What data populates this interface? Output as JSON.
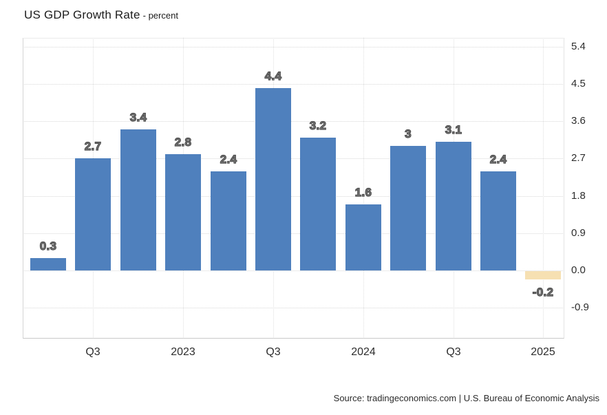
{
  "header": {
    "title": "US GDP Growth Rate",
    "subtitle": "- percent"
  },
  "footer": {
    "source": "Source: tradingeconomics.com | U.S. Bureau of Economic Analysis"
  },
  "chart_data": {
    "type": "bar",
    "title": "US GDP Growth Rate",
    "unit": "percent",
    "values": [
      0.3,
      2.7,
      3.4,
      2.8,
      2.4,
      4.4,
      3.2,
      1.6,
      3,
      3.1,
      2.4,
      -0.2
    ],
    "bar_labels": [
      "0.3",
      "2.7",
      "3.4",
      "2.8",
      "2.4",
      "4.4",
      "3.2",
      "1.6",
      "3",
      "3.1",
      "2.4",
      "-0.2"
    ],
    "bar_colors": [
      "#4f80bd",
      "#4f80bd",
      "#4f80bd",
      "#4f80bd",
      "#4f80bd",
      "#4f80bd",
      "#4f80bd",
      "#4f80bd",
      "#4f80bd",
      "#4f80bd",
      "#4f80bd",
      "#f6e0b2"
    ],
    "x_ticks": [
      {
        "bar_index": 1,
        "label": "Q3"
      },
      {
        "bar_index": 3,
        "label": "2023"
      },
      {
        "bar_index": 5,
        "label": "Q3"
      },
      {
        "bar_index": 7,
        "label": "2024"
      },
      {
        "bar_index": 9,
        "label": "Q3"
      },
      {
        "bar_index": 11,
        "label": "2025"
      }
    ],
    "y_ticks": [
      5.4,
      4.5,
      3.6,
      2.7,
      1.8,
      0.9,
      0.0,
      -0.9
    ],
    "y_tick_labels": [
      "5.4",
      "4.5",
      "3.6",
      "2.7",
      "1.8",
      "0.9",
      "0.0",
      "-0.9"
    ],
    "ylim": [
      -1.645,
      5.615
    ],
    "baseline": 0,
    "grid": "dotted-horizontal-and-vertical",
    "legend": "none",
    "colors": {
      "positive_bar": "#4f80bd",
      "negative_bar": "#f6e0b2",
      "grid": "#d8d8d8",
      "axis": "#c9c9c9",
      "tick_text": "#2d2d2d",
      "value_label_fill": "#6a6a6a",
      "value_label_stroke": "#333333"
    }
  }
}
